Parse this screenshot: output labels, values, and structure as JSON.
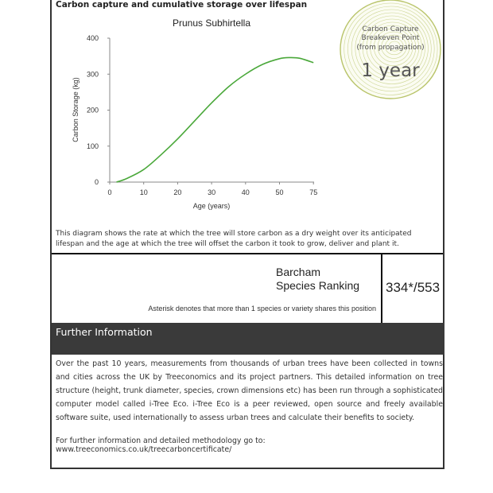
{
  "section": {
    "title": "Carbon capture and cumulative storage over lifespan"
  },
  "chart_data": {
    "type": "line",
    "title": "Prunus Subhirtella",
    "xlabel": "Age (years)",
    "ylabel": "Carbon Storage (kg)",
    "xticks": [
      "0",
      "10",
      "20",
      "30",
      "40",
      "50",
      "75"
    ],
    "yticks": [
      "0",
      "100",
      "200",
      "300",
      "400"
    ],
    "ylim": [
      0,
      400
    ],
    "grid": false,
    "color": "#4aa83a",
    "series": [
      {
        "x": [
          2,
          5,
          10,
          15,
          20,
          25,
          30,
          35,
          40,
          45,
          50,
          53,
          56,
          60
        ],
        "y": [
          0,
          10,
          35,
          75,
          120,
          170,
          220,
          265,
          300,
          327,
          343,
          346,
          344,
          332
        ]
      }
    ]
  },
  "badge": {
    "line1": "Carbon Capture",
    "line2": "Breakeven Point",
    "line3": "(from propagation)",
    "value": "1 year",
    "color": "#b9c46a"
  },
  "description": "This diagram shows the rate at which the tree will store carbon as a dry weight over its anticipated lifespan and the age at which the tree will offset the carbon it took to grow, deliver and plant it.",
  "ranking": {
    "label1": "Barcham",
    "label2": "Species Ranking",
    "value": "334*/553",
    "note": "Asterisk denotes that more than 1 species or variety shares this position"
  },
  "further": {
    "title": "Further Information",
    "body": "Over the past 10 years, measurements from thousands of urban trees have been collected in towns and cities across the UK by Treeconomics and its project partners. This detailed information on tree structure (height, trunk diameter, species, crown dimensions etc) has been run through a sophisticated computer model called i-Tree Eco. i-Tree Eco is a peer reviewed, open source and freely available software suite, used internationally to assess urban trees and calculate their benefits to society.",
    "link": "For further information and detailed methodology go to: www.treeconomics.co.uk/treecarboncertificate/"
  }
}
